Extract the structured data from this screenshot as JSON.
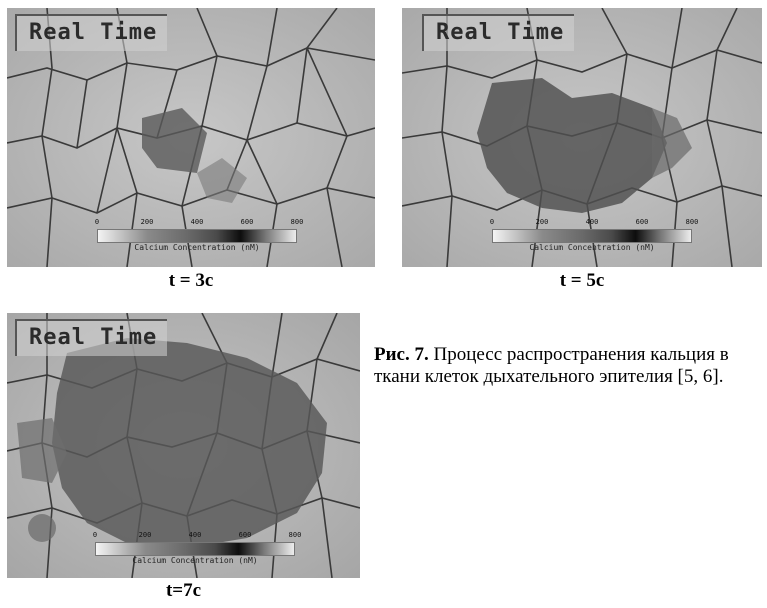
{
  "panels": [
    {
      "overlay_title": "Real Time",
      "scale_ticks": [
        "0",
        "200",
        "400",
        "600",
        "800"
      ],
      "scale_unit": "Calcium Concentration (nM)",
      "time_label": "t = 3c",
      "spread_level": 0.12
    },
    {
      "overlay_title": "Real Time",
      "scale_ticks": [
        "0",
        "200",
        "400",
        "600",
        "800"
      ],
      "scale_unit": "Calcium Concentration (nM)",
      "time_label": "t = 5c",
      "spread_level": 0.45
    },
    {
      "overlay_title": "Real Time",
      "scale_ticks": [
        "0",
        "200",
        "400",
        "600",
        "800"
      ],
      "scale_unit": "Calcium Concentration (nM)",
      "time_label": "t=7c",
      "spread_level": 0.85
    }
  ],
  "caption": {
    "prefix": "Рис. 7.",
    "text": " Процесс распространения кальция в ткани клеток дыхательного эпителия [5, 6]."
  }
}
